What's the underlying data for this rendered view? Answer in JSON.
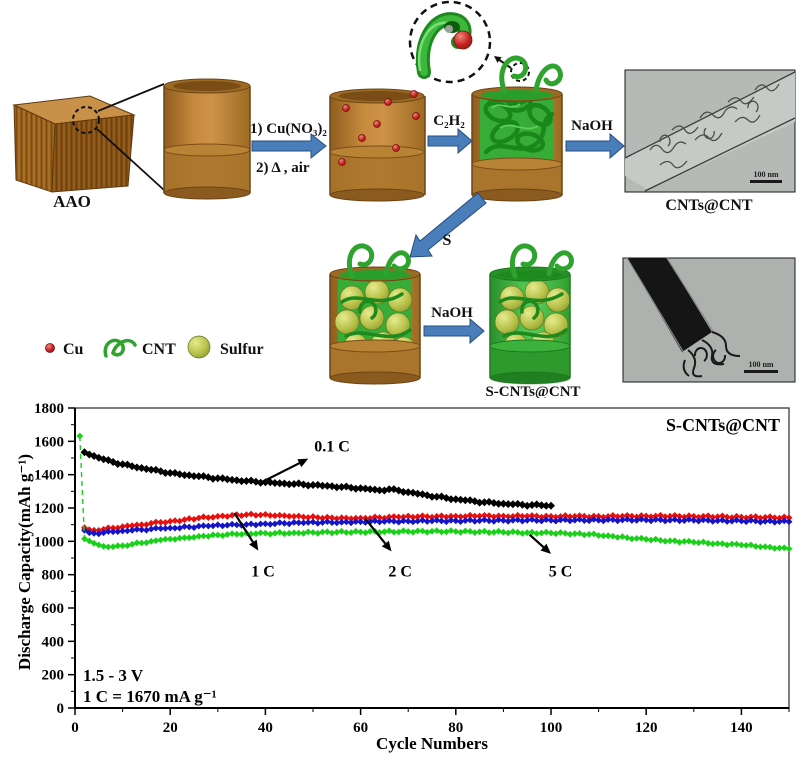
{
  "scheme": {
    "aao_label": "AAO",
    "steps": {
      "step1_line1": "1) Cu(NO₃)₂",
      "step1_line2": "2) Δ , air",
      "step2": "C₂H₂",
      "step3": "NaOH",
      "step4": "S",
      "step5": "NaOH"
    },
    "tem1": {
      "label": "CNTs@CNT",
      "scalebar": "100 nm"
    },
    "tem2": {
      "scalebar": "100 nm"
    },
    "product_label": "S-CNTs@CNT",
    "legend": {
      "cu": "Cu",
      "cnt": "CNT",
      "sulfur": "Sulfur"
    },
    "colors": {
      "arrow_blue": "#4a7ebb",
      "tube_brown": "#b5772a",
      "cnt_green": "#2ea32e",
      "copper_red": "#c42020",
      "sulfur_yellow": "#b8c24a"
    }
  },
  "chart_data": {
    "type": "line",
    "title_inside": "S-CNTs@CNT",
    "xlabel": "Cycle Numbers",
    "ylabel": "Discharge Capacity(mAh g⁻¹)",
    "xlim": [
      0,
      150
    ],
    "ylim": [
      0,
      1800
    ],
    "xticks": [
      0,
      20,
      40,
      60,
      80,
      100,
      120,
      140
    ],
    "yticks": [
      0,
      200,
      400,
      600,
      800,
      1000,
      1200,
      1400,
      1600,
      1800
    ],
    "grid": false,
    "note_line1": "1.5 - 3 V",
    "note_line2": "1 C = 1670 mA g⁻¹",
    "series": [
      {
        "name": "0.1 C",
        "color": "#000000",
        "marker": "diamond",
        "points": [
          [
            2,
            1535
          ],
          [
            4,
            1512
          ],
          [
            6,
            1492
          ],
          [
            8,
            1476
          ],
          [
            10,
            1462
          ],
          [
            12,
            1450
          ],
          [
            14,
            1440
          ],
          [
            16,
            1430
          ],
          [
            18,
            1420
          ],
          [
            20,
            1410
          ],
          [
            22,
            1402
          ],
          [
            24,
            1396
          ],
          [
            26,
            1390
          ],
          [
            28,
            1384
          ],
          [
            30,
            1378
          ],
          [
            32,
            1372
          ],
          [
            34,
            1366
          ],
          [
            36,
            1362
          ],
          [
            38,
            1358
          ],
          [
            40,
            1354
          ],
          [
            42,
            1350
          ],
          [
            44,
            1347
          ],
          [
            46,
            1344
          ],
          [
            48,
            1341
          ],
          [
            50,
            1338
          ],
          [
            52,
            1334
          ],
          [
            54,
            1330
          ],
          [
            56,
            1326
          ],
          [
            58,
            1322
          ],
          [
            60,
            1318
          ],
          [
            62,
            1312
          ],
          [
            64,
            1306
          ],
          [
            66,
            1312
          ],
          [
            68,
            1305
          ],
          [
            70,
            1295
          ],
          [
            72,
            1285
          ],
          [
            74,
            1276
          ],
          [
            76,
            1268
          ],
          [
            78,
            1260
          ],
          [
            80,
            1252
          ],
          [
            82,
            1246
          ],
          [
            84,
            1240
          ],
          [
            86,
            1234
          ],
          [
            88,
            1230
          ],
          [
            90,
            1226
          ],
          [
            92,
            1222
          ],
          [
            94,
            1220
          ],
          [
            96,
            1218
          ],
          [
            98,
            1216
          ],
          [
            100,
            1214
          ]
        ]
      },
      {
        "name": "1 C",
        "color": "#e8100c",
        "marker": "diamond",
        "points": [
          [
            2,
            1082
          ],
          [
            3,
            1070
          ],
          [
            4,
            1066
          ],
          [
            6,
            1072
          ],
          [
            8,
            1080
          ],
          [
            10,
            1088
          ],
          [
            12,
            1094
          ],
          [
            14,
            1100
          ],
          [
            16,
            1108
          ],
          [
            18,
            1114
          ],
          [
            20,
            1120
          ],
          [
            23,
            1130
          ],
          [
            26,
            1140
          ],
          [
            30,
            1150
          ],
          [
            33,
            1156
          ],
          [
            36,
            1160
          ],
          [
            39,
            1158
          ],
          [
            42,
            1154
          ],
          [
            45,
            1150
          ],
          [
            48,
            1146
          ],
          [
            51,
            1143
          ],
          [
            54,
            1141
          ],
          [
            57,
            1140
          ],
          [
            60,
            1140
          ],
          [
            64,
            1143
          ],
          [
            68,
            1146
          ],
          [
            72,
            1148
          ],
          [
            76,
            1150
          ],
          [
            80,
            1151
          ],
          [
            85,
            1152
          ],
          [
            90,
            1152
          ],
          [
            95,
            1151
          ],
          [
            100,
            1150
          ],
          [
            105,
            1150
          ],
          [
            110,
            1150
          ],
          [
            115,
            1151
          ],
          [
            120,
            1152
          ],
          [
            125,
            1151
          ],
          [
            130,
            1150
          ],
          [
            135,
            1148
          ],
          [
            140,
            1146
          ],
          [
            145,
            1144
          ],
          [
            150,
            1142
          ]
        ]
      },
      {
        "name": "2 C",
        "color": "#1414c8",
        "marker": "diamond",
        "points": [
          [
            2,
            1066
          ],
          [
            3,
            1052
          ],
          [
            4,
            1048
          ],
          [
            6,
            1052
          ],
          [
            8,
            1058
          ],
          [
            10,
            1062
          ],
          [
            12,
            1066
          ],
          [
            14,
            1070
          ],
          [
            16,
            1074
          ],
          [
            18,
            1077
          ],
          [
            20,
            1080
          ],
          [
            24,
            1086
          ],
          [
            28,
            1092
          ],
          [
            32,
            1097
          ],
          [
            36,
            1101
          ],
          [
            40,
            1105
          ],
          [
            44,
            1108
          ],
          [
            48,
            1111
          ],
          [
            52,
            1113
          ],
          [
            56,
            1115
          ],
          [
            60,
            1117
          ],
          [
            65,
            1119
          ],
          [
            70,
            1121
          ],
          [
            75,
            1122
          ],
          [
            80,
            1123
          ],
          [
            85,
            1124
          ],
          [
            90,
            1125
          ],
          [
            95,
            1126
          ],
          [
            100,
            1126
          ],
          [
            105,
            1127
          ],
          [
            110,
            1127
          ],
          [
            115,
            1128
          ],
          [
            120,
            1128
          ],
          [
            125,
            1127
          ],
          [
            130,
            1126
          ],
          [
            135,
            1124
          ],
          [
            140,
            1122
          ],
          [
            145,
            1120
          ],
          [
            150,
            1118
          ]
        ]
      },
      {
        "name": "5 C",
        "color": "#19d119",
        "marker": "diamond",
        "dash_first": true,
        "points": [
          [
            1,
            1632
          ],
          [
            2,
            1015
          ],
          [
            3,
            1002
          ],
          [
            4,
            988
          ],
          [
            5,
            978
          ],
          [
            6,
            970
          ],
          [
            7,
            966
          ],
          [
            8,
            968
          ],
          [
            10,
            974
          ],
          [
            12,
            982
          ],
          [
            14,
            990
          ],
          [
            16,
            1000
          ],
          [
            18,
            1008
          ],
          [
            20,
            1014
          ],
          [
            23,
            1022
          ],
          [
            26,
            1030
          ],
          [
            30,
            1038
          ],
          [
            34,
            1043
          ],
          [
            38,
            1046
          ],
          [
            42,
            1049
          ],
          [
            46,
            1051
          ],
          [
            50,
            1053
          ],
          [
            55,
            1055
          ],
          [
            60,
            1056
          ],
          [
            65,
            1058
          ],
          [
            70,
            1059
          ],
          [
            75,
            1060
          ],
          [
            80,
            1059
          ],
          [
            85,
            1057
          ],
          [
            90,
            1055
          ],
          [
            95,
            1052
          ],
          [
            100,
            1050
          ],
          [
            105,
            1046
          ],
          [
            108,
            1042
          ],
          [
            112,
            1034
          ],
          [
            116,
            1022
          ],
          [
            120,
            1012
          ],
          [
            125,
            1003
          ],
          [
            130,
            995
          ],
          [
            135,
            987
          ],
          [
            140,
            978
          ],
          [
            145,
            968
          ],
          [
            148,
            960
          ],
          [
            150,
            956
          ]
        ]
      }
    ],
    "annotations": [
      {
        "label": "0.1 C",
        "arrow_from": [
          39.3,
          1356
        ],
        "arrow_to": [
          49,
          1496
        ],
        "label_at": [
          54,
          1540
        ]
      },
      {
        "label": "1 C",
        "arrow_from": [
          33.5,
          1170
        ],
        "arrow_to": [
          38.5,
          945
        ],
        "label_at": [
          39.5,
          790
        ]
      },
      {
        "label": "2 C",
        "arrow_from": [
          61,
          1135
        ],
        "arrow_to": [
          66.5,
          940
        ],
        "label_at": [
          68.3,
          790
        ]
      },
      {
        "label": "5 C",
        "arrow_from": [
          95.5,
          1040
        ],
        "arrow_to": [
          100,
          925
        ],
        "label_at": [
          102,
          790
        ]
      }
    ]
  }
}
